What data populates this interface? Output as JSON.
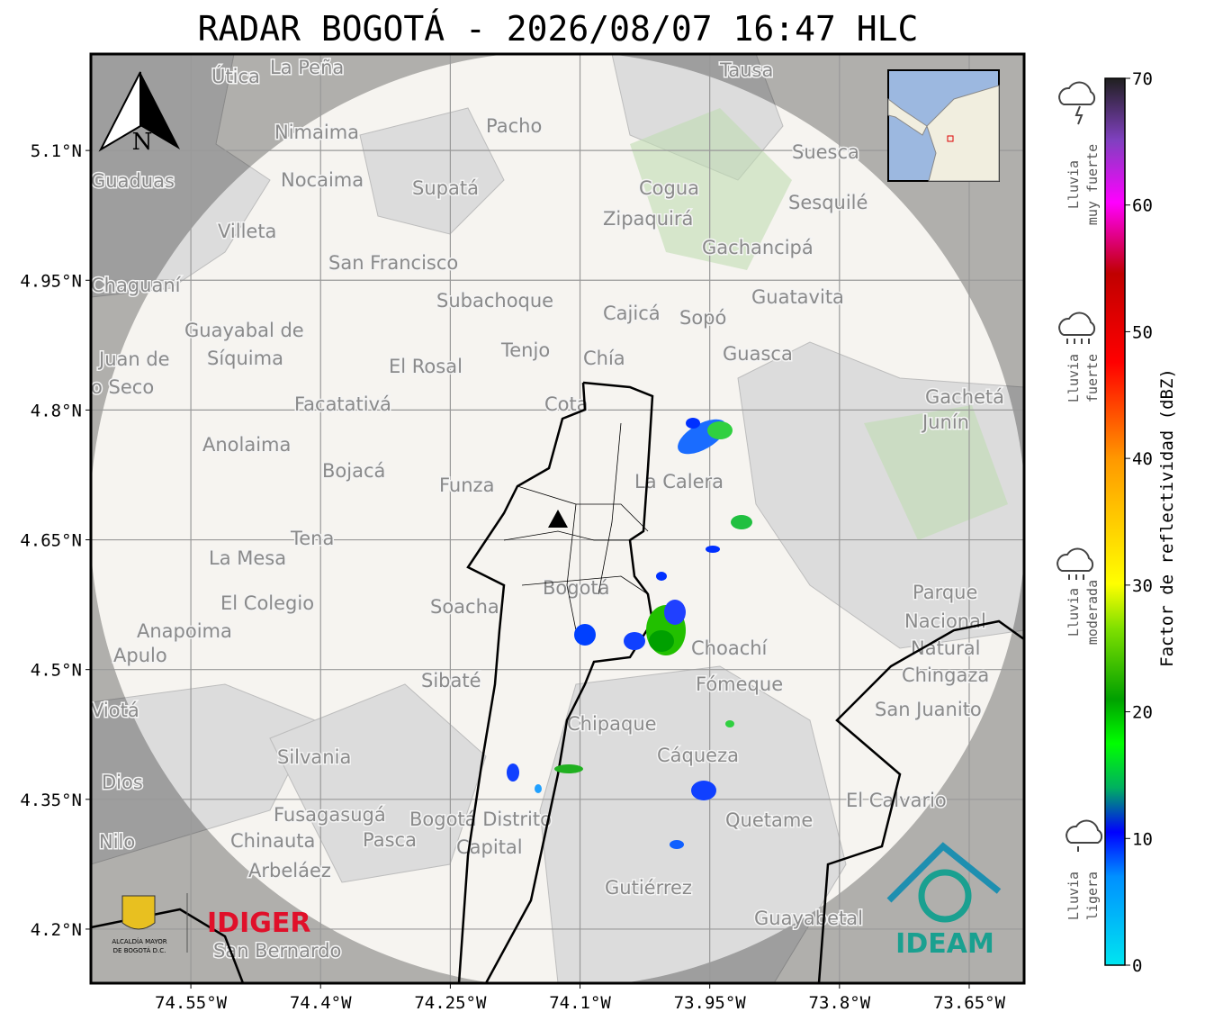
{
  "title": "RADAR BOGOTÁ - 2026/08/07 16:47 HLC",
  "map": {
    "lonlim": [
      -74.6656,
      -73.5865
    ],
    "latlim": [
      4.1375,
      5.2115
    ],
    "lonticks": [
      {
        "value": -74.55,
        "label": "74.55°W"
      },
      {
        "value": -74.4,
        "label": "74.4°W"
      },
      {
        "value": -74.25,
        "label": "74.25°W"
      },
      {
        "value": -74.1,
        "label": "74.1°W"
      },
      {
        "value": -73.95,
        "label": "73.95°W"
      },
      {
        "value": -73.8,
        "label": "73.8°W"
      },
      {
        "value": -73.65,
        "label": "73.65°W"
      }
    ],
    "latticks": [
      {
        "value": 5.1,
        "label": "5.1°N"
      },
      {
        "value": 4.95,
        "label": "4.95°N"
      },
      {
        "value": 4.8,
        "label": "4.8°N"
      },
      {
        "value": 4.65,
        "label": "4.65°N"
      },
      {
        "value": 4.5,
        "label": "4.5°N"
      },
      {
        "value": 4.35,
        "label": "4.35°N"
      },
      {
        "value": 4.2,
        "label": "4.2°N"
      }
    ],
    "grid": true,
    "north_label": "N",
    "places": [
      "La Peña",
      "Útica",
      "Tausa",
      "Nimaima",
      "Pacho",
      "Suesca",
      "Guaduas",
      "Nocaima",
      "Supatá",
      "Cogua",
      "Sesquilé",
      "Zipaquirá",
      "Villeta",
      "Gachancipá",
      "San Francisco",
      "Chaguaní",
      "Guatavita",
      "Subachoque",
      "Cajicá",
      "Sopó",
      "Guayabal de",
      "Síquima",
      "Tenjo",
      "Chía",
      "Guasca",
      "El Rosal",
      "Facatativá",
      "Cota",
      "Gachetá",
      "Junín",
      "Anolaima",
      "Bojacá",
      "Funza",
      "La Calera",
      "Tena",
      "La Mesa",
      "Bogotá",
      "Parque",
      "Nacional",
      "Natural",
      "Chingaza",
      "El Colegio",
      "Soacha",
      "Anapoima",
      "Apulo",
      "Choachí",
      "Sibaté",
      "Fómeque",
      "San Juanito",
      "Viotá",
      "Chipaque",
      "Silvania",
      "Cáqueza",
      "Dios",
      "Fusagasugá",
      "Bogotá Distrito",
      "Capital",
      "El Calvario",
      "Chinauta",
      "Pasca",
      "Quetame",
      "Nilo",
      "Arbeláez",
      "Gutiérrez",
      "Guayabetal",
      "San Bernardo",
      "Juan de",
      "o Seco"
    ]
  },
  "colorbar": {
    "label": "Factor de reflectividad (dBZ)",
    "lim": [
      0,
      70
    ],
    "ticks": [
      0,
      10,
      20,
      30,
      40,
      50,
      60,
      70
    ]
  },
  "rain_classes": [
    [
      "Lluvia",
      "muy fuerte"
    ],
    [
      "Lluvia",
      "fuerte"
    ],
    [
      "Lluvia",
      "moderada"
    ],
    [
      "Lluvia",
      "ligera"
    ]
  ],
  "logos": {
    "alcaldia": [
      "ALCALDÍA MAYOR",
      "DE BOGOTÁ D.C."
    ],
    "idiger": "IDIGER",
    "ideam": "IDEAM"
  }
}
